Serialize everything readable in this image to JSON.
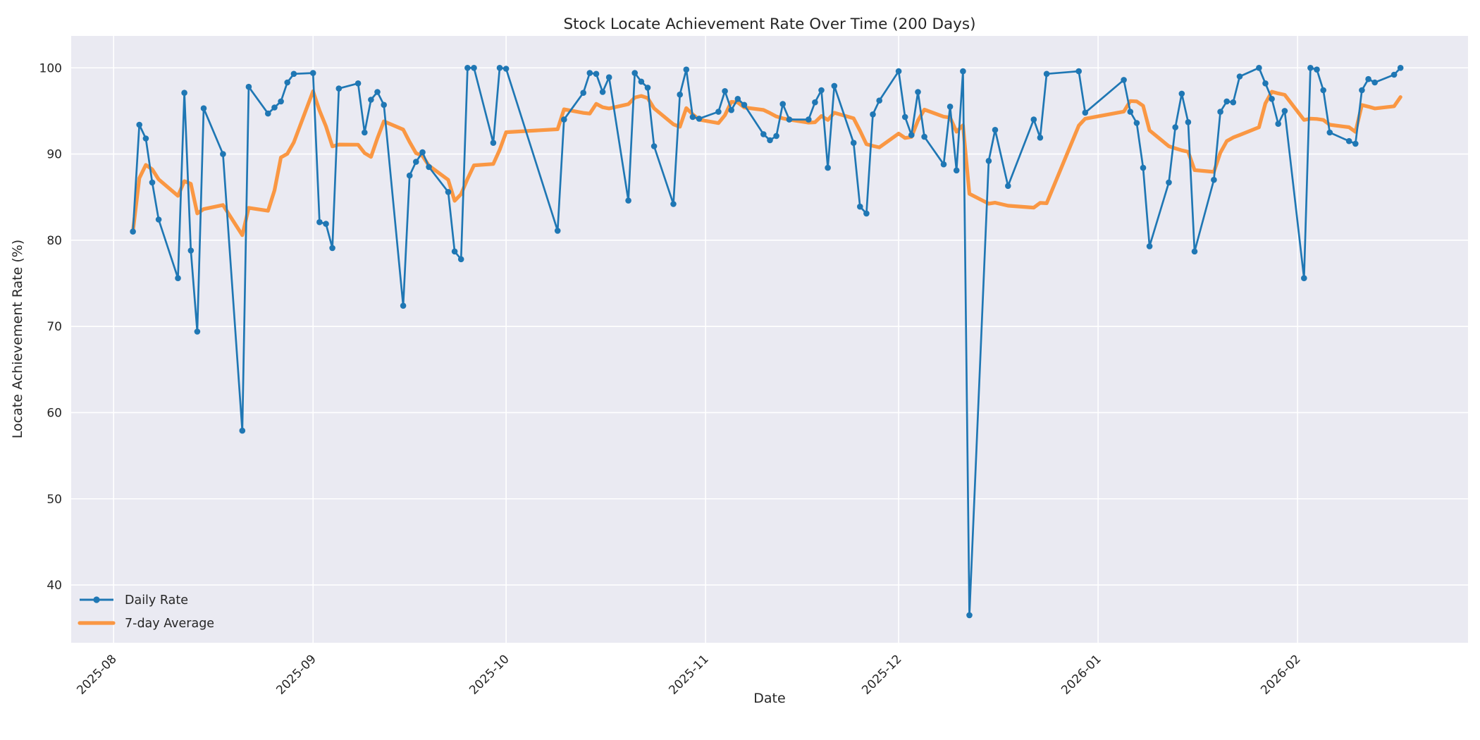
{
  "colors": {
    "daily": "#1f77b4",
    "average": "#fa9743",
    "plot_background": "#eaeaf2",
    "grid": "#ffffff",
    "text": "#262626"
  },
  "legend": {
    "position": "lower-left",
    "items": [
      {
        "label": "Daily Rate",
        "series": "daily"
      },
      {
        "label": "7-day Average",
        "series": "average"
      }
    ]
  },
  "chart_data": {
    "type": "line",
    "title": "Stock Locate Achievement Rate Over Time (200 Days)",
    "xlabel": "Date",
    "ylabel": "Locate Achievement Rate (%)",
    "grid": true,
    "legend_position": "lower-left",
    "ylim": [
      33.3,
      103.7
    ],
    "y_ticks": [
      40,
      50,
      60,
      70,
      80,
      90,
      100
    ],
    "x_ticks": [
      {
        "label": "2025-08",
        "date": "2025-08-01"
      },
      {
        "label": "2025-09",
        "date": "2025-09-01"
      },
      {
        "label": "2025-10",
        "date": "2025-10-01"
      },
      {
        "label": "2025-11",
        "date": "2025-11-01"
      },
      {
        "label": "2025-12",
        "date": "2025-12-01"
      },
      {
        "label": "2026-01",
        "date": "2026-01-01"
      },
      {
        "label": "2026-02",
        "date": "2026-02-01"
      }
    ],
    "series": [
      {
        "name": "Daily Rate",
        "style": "line+markers",
        "dates": [
          "2025-08-04",
          "2025-08-05",
          "2025-08-06",
          "2025-08-07",
          "2025-08-08",
          "2025-08-11",
          "2025-08-12",
          "2025-08-13",
          "2025-08-14",
          "2025-08-15",
          "2025-08-18",
          "2025-08-21",
          "2025-08-22",
          "2025-08-25",
          "2025-08-26",
          "2025-08-27",
          "2025-08-28",
          "2025-08-29",
          "2025-09-01",
          "2025-09-02",
          "2025-09-03",
          "2025-09-04",
          "2025-09-05",
          "2025-09-08",
          "2025-09-09",
          "2025-09-10",
          "2025-09-11",
          "2025-09-12",
          "2025-09-15",
          "2025-09-16",
          "2025-09-17",
          "2025-09-18",
          "2025-09-19",
          "2025-09-22",
          "2025-09-23",
          "2025-09-24",
          "2025-09-25",
          "2025-09-26",
          "2025-09-29",
          "2025-09-30",
          "2025-10-01",
          "2025-10-09",
          "2025-10-10",
          "2025-10-13",
          "2025-10-14",
          "2025-10-15",
          "2025-10-16",
          "2025-10-17",
          "2025-10-20",
          "2025-10-21",
          "2025-10-22",
          "2025-10-23",
          "2025-10-24",
          "2025-10-27",
          "2025-10-28",
          "2025-10-29",
          "2025-10-30",
          "2025-10-31",
          "2025-11-03",
          "2025-11-04",
          "2025-11-05",
          "2025-11-06",
          "2025-11-07",
          "2025-11-10",
          "2025-11-11",
          "2025-11-12",
          "2025-11-13",
          "2025-11-14",
          "2025-11-17",
          "2025-11-18",
          "2025-11-19",
          "2025-11-20",
          "2025-11-21",
          "2025-11-24",
          "2025-11-25",
          "2025-11-26",
          "2025-11-27",
          "2025-11-28",
          "2025-12-01",
          "2025-12-02",
          "2025-12-03",
          "2025-12-04",
          "2025-12-05",
          "2025-12-08",
          "2025-12-09",
          "2025-12-10",
          "2025-12-11",
          "2025-12-12",
          "2025-12-15",
          "2025-12-16",
          "2025-12-18",
          "2025-12-22",
          "2025-12-23",
          "2025-12-24",
          "2025-12-29",
          "2025-12-30",
          "2026-01-05",
          "2026-01-06",
          "2026-01-07",
          "2026-01-08",
          "2026-01-09",
          "2026-01-12",
          "2026-01-13",
          "2026-01-14",
          "2026-01-15",
          "2026-01-16",
          "2026-01-19",
          "2026-01-20",
          "2026-01-21",
          "2026-01-22",
          "2026-01-23",
          "2026-01-26",
          "2026-01-27",
          "2026-01-28",
          "2026-01-29",
          "2026-01-30",
          "2026-02-02",
          "2026-02-03",
          "2026-02-04",
          "2026-02-05",
          "2026-02-06",
          "2026-02-09",
          "2026-02-10",
          "2026-02-11",
          "2026-02-12",
          "2026-02-13",
          "2026-02-16",
          "2026-02-17"
        ],
        "values": [
          81.0,
          93.4,
          91.8,
          86.7,
          82.4,
          75.6,
          97.1,
          78.8,
          69.4,
          95.3,
          90.0,
          57.9,
          97.8,
          94.7,
          95.4,
          96.1,
          98.3,
          99.3,
          99.4,
          82.1,
          81.9,
          79.1,
          97.6,
          98.2,
          92.5,
          96.3,
          97.2,
          95.7,
          72.4,
          87.5,
          89.1,
          90.2,
          88.5,
          85.6,
          78.7,
          77.8,
          100.0,
          100.0,
          91.3,
          100.0,
          99.9,
          81.1,
          94.0,
          97.1,
          99.4,
          99.3,
          97.2,
          98.9,
          84.6,
          99.4,
          98.4,
          97.7,
          90.9,
          84.2,
          96.9,
          99.8,
          94.3,
          94.1,
          94.9,
          97.3,
          95.1,
          96.4,
          95.7,
          92.3,
          91.6,
          92.1,
          95.8,
          94.0,
          94.0,
          96.0,
          97.4,
          88.4,
          97.9,
          91.3,
          83.9,
          83.1,
          94.6,
          96.2,
          99.6,
          94.3,
          92.2,
          97.2,
          92.0,
          88.8,
          95.5,
          88.1,
          99.6,
          36.5,
          89.2,
          92.8,
          86.3,
          94.0,
          91.9,
          99.3,
          99.6,
          94.8,
          98.6,
          94.9,
          93.6,
          88.4,
          79.3,
          86.7,
          93.1,
          97.0,
          93.7,
          78.7,
          87.0,
          94.9,
          96.1,
          96.0,
          99.0,
          100.0,
          98.2,
          96.4,
          93.5,
          95.0,
          75.6,
          100.0,
          99.8,
          97.4,
          92.5,
          91.5,
          91.2,
          97.4,
          98.7,
          98.3,
          99.2,
          100.0
        ]
      },
      {
        "name": "7-day Average",
        "style": "line",
        "derived_from": "Daily Rate",
        "method": "rolling_mean",
        "window": 7,
        "min_periods": 1
      }
    ]
  }
}
